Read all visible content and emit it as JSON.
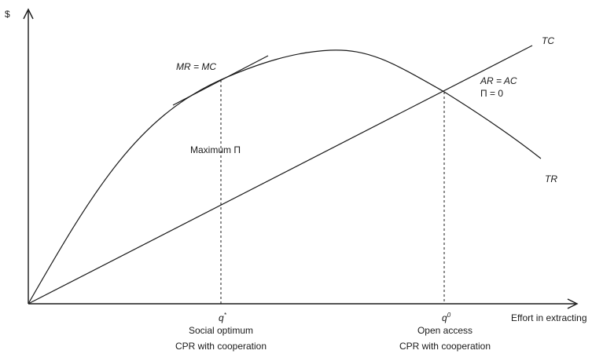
{
  "axes": {
    "y_label": "$",
    "x_label": "Effort in extracting"
  },
  "curves": {
    "tc_label": "TC",
    "tr_label": "TR"
  },
  "annotations": {
    "tangent_label": "MR = MC",
    "max_profit_label": "Maximum Π",
    "open_access_eq_line1": "AR = AC",
    "open_access_eq_line2": "Π = 0"
  },
  "points": {
    "q_star": {
      "symbol": "q",
      "superscript": "*",
      "line1": "Social optimum",
      "line2": "CPR with cooperation"
    },
    "q_zero": {
      "symbol": "q",
      "superscript": "0",
      "line1": "Open access",
      "line2": "CPR with cooperation"
    }
  }
}
